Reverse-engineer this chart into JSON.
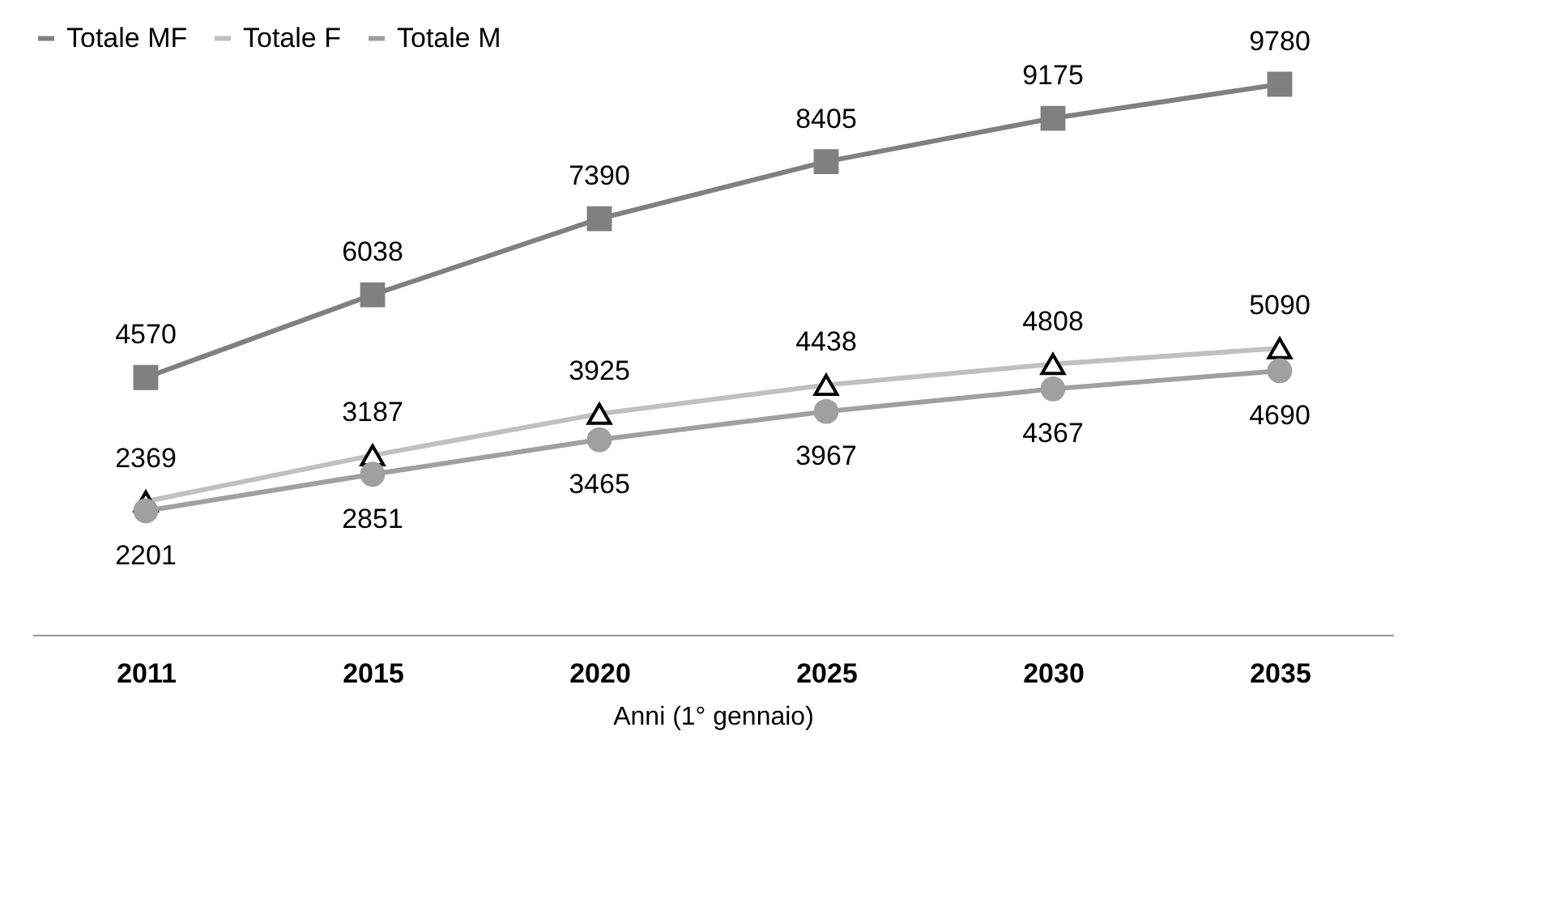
{
  "chart_data": {
    "type": "line",
    "xlabel": "Anni (1° gennaio)",
    "categories": [
      "2011",
      "2015",
      "2020",
      "2025",
      "2030",
      "2035"
    ],
    "series": [
      {
        "name": "Totale MF",
        "color": "#808080",
        "marker": "square",
        "values": [
          4570,
          6038,
          7390,
          8405,
          9175,
          9780
        ]
      },
      {
        "name": "Totale F",
        "color": "#c0c0c0",
        "marker": "triangle",
        "values": [
          2369,
          3187,
          3925,
          4438,
          4808,
          5090
        ]
      },
      {
        "name": "Totale M",
        "color": "#a0a0a0",
        "marker": "circle",
        "values": [
          2201,
          2851,
          3465,
          3967,
          4367,
          4690
        ]
      }
    ],
    "data_labels": true,
    "legend": "top"
  }
}
